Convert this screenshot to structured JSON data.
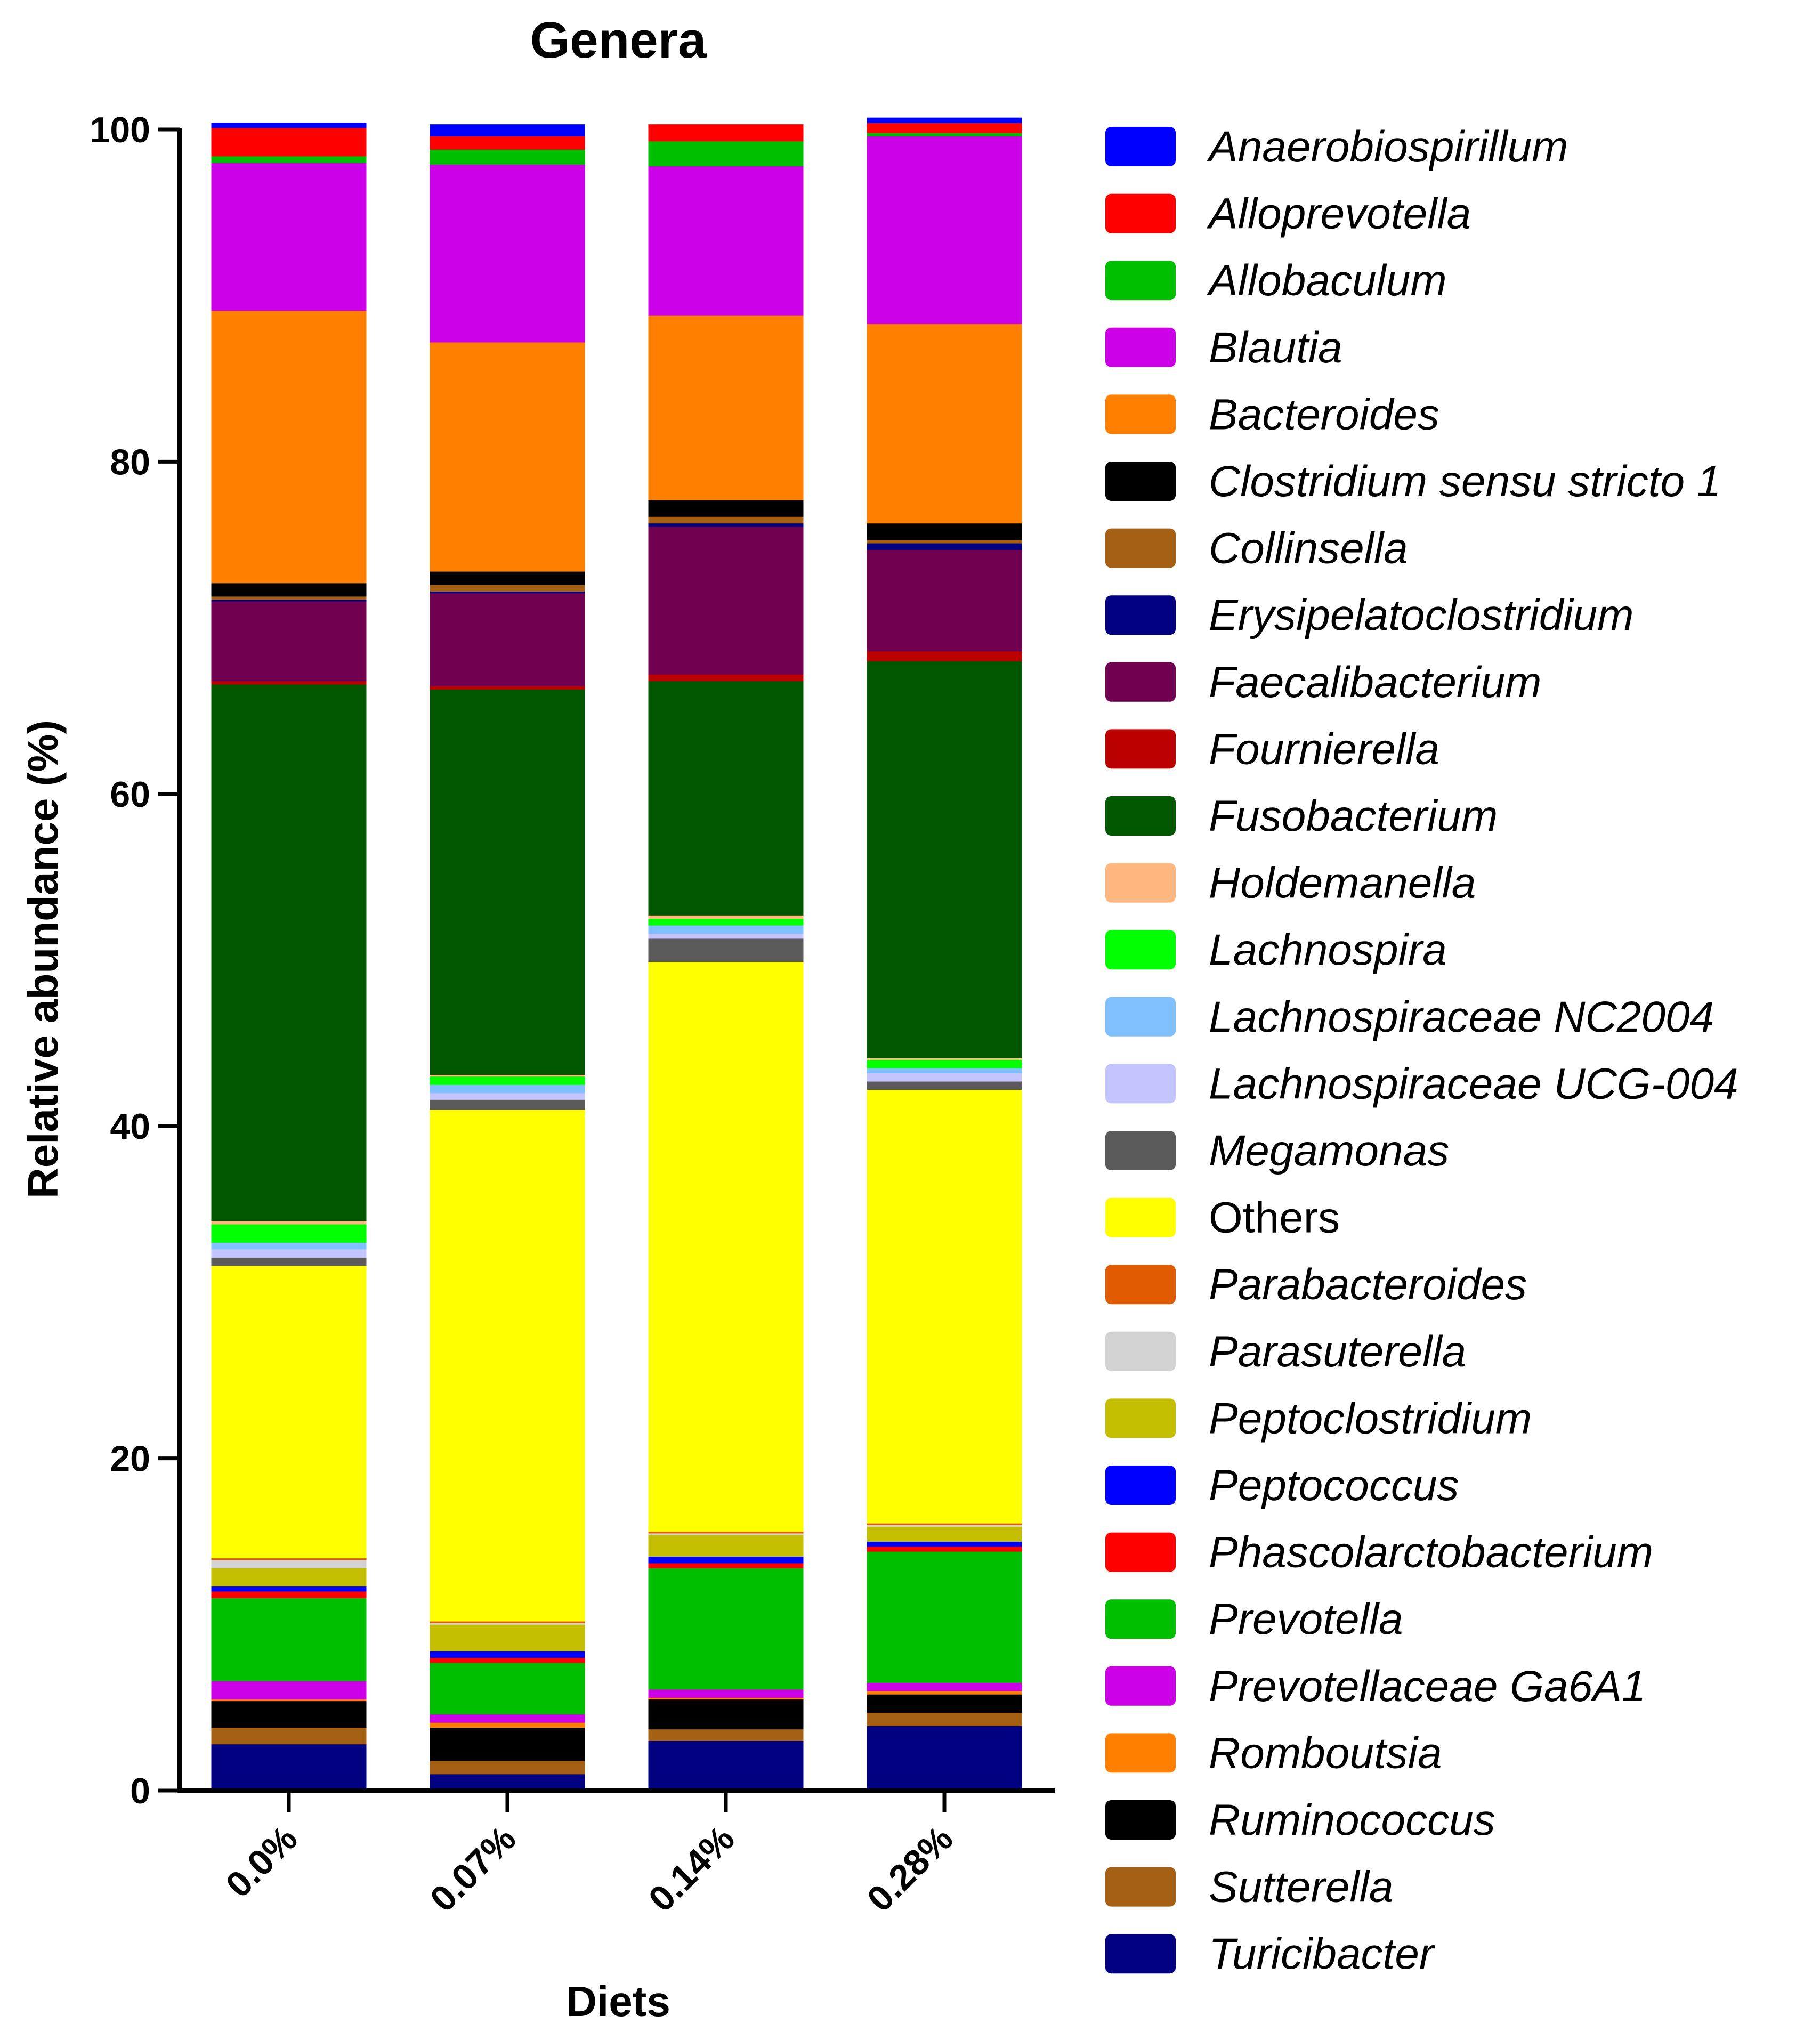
{
  "chart_data": {
    "type": "bar",
    "stacked": true,
    "title": "Genera",
    "xlabel": "Diets",
    "ylabel": "Relative abundance (%)",
    "ylim": [
      0,
      100
    ],
    "yticks": [
      "0",
      "20",
      "40",
      "60",
      "80",
      "100"
    ],
    "categories": [
      "0.0%",
      "0.07%",
      "0.14%",
      "0.28%"
    ],
    "legend_position": "right",
    "series": [
      {
        "name": "Turicibacter",
        "color": "#000080",
        "italic": true,
        "values": [
          2.8,
          1.0,
          3.0,
          3.9
        ]
      },
      {
        "name": "Sutterella",
        "color": "#A66014",
        "italic": true,
        "values": [
          1.0,
          0.8,
          0.7,
          0.8
        ]
      },
      {
        "name": "Ruminococcus",
        "color": "#000000",
        "italic": true,
        "values": [
          1.6,
          2.0,
          1.8,
          1.1
        ]
      },
      {
        "name": "Romboutsia",
        "color": "#FF8000",
        "italic": true,
        "values": [
          0.1,
          0.3,
          0.1,
          0.2
        ]
      },
      {
        "name": "Prevotellaceae Ga6A1",
        "color": "#CC00E6",
        "italic": true,
        "values": [
          1.1,
          0.5,
          0.5,
          0.5
        ]
      },
      {
        "name": "Prevotella",
        "color": "#00BF00",
        "italic": true,
        "values": [
          5.0,
          3.1,
          7.3,
          7.9
        ]
      },
      {
        "name": "Phascolarctobacterium",
        "color": "#FF0000",
        "italic": true,
        "values": [
          0.4,
          0.3,
          0.3,
          0.3
        ]
      },
      {
        "name": "Peptococcus",
        "color": "#0000FF",
        "italic": true,
        "values": [
          0.3,
          0.4,
          0.4,
          0.3
        ]
      },
      {
        "name": "Peptoclostridium",
        "color": "#C4BE00",
        "italic": true,
        "values": [
          1.1,
          1.6,
          1.3,
          0.9
        ]
      },
      {
        "name": "Parasuterella",
        "color": "#D3D3D3",
        "italic": true,
        "values": [
          0.5,
          0.1,
          0.1,
          0.1
        ]
      },
      {
        "name": "Parabacteroides",
        "color": "#E05A00",
        "italic": true,
        "values": [
          0.1,
          0.1,
          0.1,
          0.1
        ]
      },
      {
        "name": "Others",
        "color": "#FFFF00",
        "italic": false,
        "values": [
          17.6,
          30.8,
          34.3,
          26.1
        ]
      },
      {
        "name": "Megamonas",
        "color": "#5A5A5A",
        "italic": true,
        "values": [
          0.5,
          0.6,
          1.4,
          0.5
        ]
      },
      {
        "name": "Lachnospiraceae UCG-004",
        "color": "#C4C4FF",
        "italic": true,
        "values": [
          0.5,
          0.4,
          0.3,
          0.5
        ]
      },
      {
        "name": "Lachnospiraceae NC2004",
        "color": "#80C0FF",
        "italic": true,
        "values": [
          0.4,
          0.5,
          0.5,
          0.3
        ]
      },
      {
        "name": "Lachnospira",
        "color": "#00FF00",
        "italic": true,
        "values": [
          1.1,
          0.5,
          0.4,
          0.5
        ]
      },
      {
        "name": "Holdemanella",
        "color": "#FFB780",
        "italic": true,
        "values": [
          0.2,
          0.1,
          0.2,
          0.1
        ]
      },
      {
        "name": "Fusobacterium",
        "color": "#005700",
        "italic": true,
        "values": [
          32.3,
          23.2,
          14.1,
          23.9
        ]
      },
      {
        "name": "Fournierella",
        "color": "#BB0000",
        "italic": true,
        "values": [
          0.2,
          0.2,
          0.4,
          0.6
        ]
      },
      {
        "name": "Faecalibacterium",
        "color": "#720050",
        "italic": true,
        "values": [
          4.8,
          5.6,
          8.9,
          6.1
        ]
      },
      {
        "name": "Erysipelatoclostridium",
        "color": "#000080",
        "italic": true,
        "values": [
          0.1,
          0.1,
          0.2,
          0.4
        ]
      },
      {
        "name": "Collinsella",
        "color": "#A66014",
        "italic": true,
        "values": [
          0.2,
          0.4,
          0.4,
          0.2
        ]
      },
      {
        "name": "Clostridium sensu stricto 1",
        "color": "#000000",
        "italic": true,
        "values": [
          0.8,
          0.8,
          1.0,
          1.0
        ]
      },
      {
        "name": "Bacteroides",
        "color": "#FF8000",
        "italic": true,
        "values": [
          16.4,
          13.8,
          11.1,
          12.0
        ]
      },
      {
        "name": "Blautia",
        "color": "#CC00E6",
        "italic": true,
        "values": [
          8.9,
          10.7,
          9.0,
          11.3
        ]
      },
      {
        "name": "Allobaculum",
        "color": "#00BF00",
        "italic": true,
        "values": [
          0.4,
          0.9,
          1.5,
          0.2
        ]
      },
      {
        "name": "Alloprevotella",
        "color": "#FF0000",
        "italic": true,
        "values": [
          1.7,
          0.8,
          1.0,
          0.6
        ]
      },
      {
        "name": "Anaerobiospirillum",
        "color": "#0000FF",
        "italic": true,
        "values": [
          0.3,
          0.7,
          0.0,
          0.3
        ]
      }
    ]
  }
}
